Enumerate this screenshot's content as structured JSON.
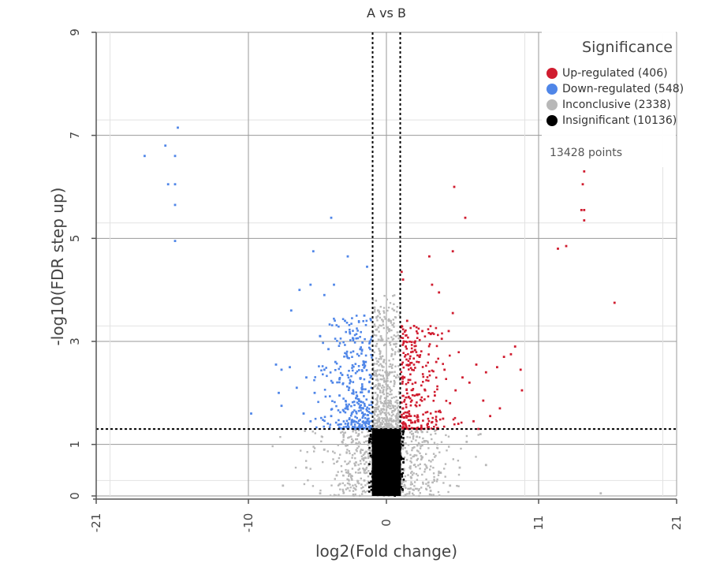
{
  "chart_data": {
    "type": "scatter",
    "title": "A vs B",
    "xlabel": "log2(Fold change)",
    "ylabel": "-log10(FDR step up)",
    "xlim": [
      -21,
      21
    ],
    "ylim": [
      0,
      9
    ],
    "x_ticks": [
      -21,
      -10,
      0,
      11,
      21
    ],
    "y_ticks": [
      0,
      1,
      3,
      5,
      7,
      9
    ],
    "x_tick_labels": [
      "-21",
      "-10",
      "0",
      "11",
      "21"
    ],
    "y_tick_labels": [
      "0",
      "1",
      "3",
      "5",
      "7",
      "9"
    ],
    "grid": true,
    "thresholds": {
      "log2_fold_change": [
        -1,
        1
      ],
      "neg_log10_fdr": 1.3
    },
    "legend": {
      "title": "Significance",
      "position": "top-right",
      "items": [
        {
          "label": "Up-regulated (406)",
          "color": "#d01c2f"
        },
        {
          "label": "Down-regulated (548)",
          "color": "#4f86e8"
        },
        {
          "label": "Inconclusive (2338)",
          "color": "#b8b8b8"
        },
        {
          "label": "Insignificant (10136)",
          "color": "#000000"
        }
      ],
      "point_count": "13428 points"
    },
    "series": [
      {
        "name": "Up-regulated (406)",
        "color": "#d01c2f",
        "points": [
          [
            14.3,
            6.3
          ],
          [
            14.2,
            6.05
          ],
          [
            14.1,
            5.55
          ],
          [
            14.3,
            5.55
          ],
          [
            14.3,
            5.35
          ],
          [
            13.0,
            4.85
          ],
          [
            12.4,
            4.8
          ],
          [
            16.5,
            3.75
          ],
          [
            4.9,
            6.0
          ],
          [
            5.7,
            5.4
          ],
          [
            4.8,
            4.75
          ],
          [
            3.1,
            4.65
          ],
          [
            1.1,
            4.35
          ],
          [
            1.2,
            4.2
          ],
          [
            3.3,
            4.1
          ],
          [
            3.8,
            3.95
          ],
          [
            4.8,
            3.55
          ],
          [
            9.3,
            2.9
          ],
          [
            9.0,
            2.75
          ],
          [
            8.5,
            2.7
          ],
          [
            8.0,
            2.5
          ],
          [
            9.7,
            2.45
          ],
          [
            9.8,
            2.05
          ],
          [
            7.2,
            2.4
          ],
          [
            6.5,
            2.55
          ],
          [
            6.0,
            2.2
          ],
          [
            5.5,
            2.3
          ],
          [
            5.0,
            2.05
          ],
          [
            8.2,
            1.7
          ],
          [
            7.0,
            1.85
          ],
          [
            6.3,
            1.45
          ],
          [
            7.5,
            1.55
          ],
          [
            1.5,
            3.4
          ],
          [
            2.0,
            3.3
          ],
          [
            2.6,
            3.2
          ],
          [
            3.2,
            3.15
          ],
          [
            4.0,
            3.05
          ],
          [
            4.5,
            3.2
          ],
          [
            1.4,
            2.9
          ],
          [
            1.9,
            2.8
          ],
          [
            2.4,
            2.7
          ],
          [
            3.6,
            2.6
          ],
          [
            4.2,
            2.45
          ],
          [
            1.3,
            2.3
          ],
          [
            2.1,
            2.2
          ],
          [
            2.8,
            2.05
          ],
          [
            3.5,
            1.95
          ],
          [
            4.6,
            1.8
          ],
          [
            1.2,
            1.7
          ],
          [
            1.7,
            1.55
          ],
          [
            2.3,
            1.45
          ],
          [
            3.0,
            1.4
          ],
          [
            5.2,
            1.4
          ],
          [
            4.1,
            1.5
          ]
        ]
      },
      {
        "name": "Down-regulated (548)",
        "color": "#4f86e8",
        "points": [
          [
            -15.1,
            7.15
          ],
          [
            -16.0,
            6.8
          ],
          [
            -17.5,
            6.6
          ],
          [
            -15.3,
            6.6
          ],
          [
            -15.8,
            6.05
          ],
          [
            -15.3,
            6.05
          ],
          [
            -15.3,
            5.65
          ],
          [
            -15.3,
            4.95
          ],
          [
            -4.0,
            5.4
          ],
          [
            -5.3,
            4.75
          ],
          [
            -2.8,
            4.65
          ],
          [
            -1.4,
            4.45
          ],
          [
            -5.5,
            4.1
          ],
          [
            -3.8,
            4.1
          ],
          [
            -6.3,
            4.0
          ],
          [
            -4.5,
            3.9
          ],
          [
            -6.9,
            3.6
          ],
          [
            -7.0,
            2.5
          ],
          [
            -8.0,
            2.55
          ],
          [
            -7.6,
            2.45
          ],
          [
            -7.8,
            2.0
          ],
          [
            -7.6,
            1.75
          ],
          [
            -9.8,
            1.6
          ],
          [
            -6.5,
            2.1
          ],
          [
            -5.8,
            2.3
          ],
          [
            -5.2,
            2.0
          ],
          [
            -6.0,
            1.6
          ],
          [
            -5.5,
            1.45
          ],
          [
            -4.8,
            3.1
          ],
          [
            -4.2,
            2.85
          ],
          [
            -3.7,
            2.6
          ],
          [
            -3.2,
            2.35
          ],
          [
            -2.7,
            2.1
          ],
          [
            -2.2,
            1.9
          ],
          [
            -1.7,
            1.7
          ],
          [
            -1.3,
            1.5
          ],
          [
            -4.5,
            2.45
          ],
          [
            -3.9,
            2.2
          ],
          [
            -3.4,
            1.95
          ],
          [
            -2.9,
            1.7
          ],
          [
            -2.4,
            3.05
          ],
          [
            -1.9,
            2.85
          ],
          [
            -1.5,
            2.6
          ],
          [
            -1.2,
            2.35
          ],
          [
            -3.0,
            3.4
          ],
          [
            -2.5,
            1.45
          ],
          [
            -4.0,
            1.55
          ],
          [
            -1.6,
            3.5
          ]
        ]
      },
      {
        "name": "Inconclusive (2338)",
        "color": "#b8b8b8",
        "points": [
          [
            -7.5,
            0.2
          ],
          [
            -5.8,
            0.55
          ],
          [
            -4.8,
            0.05
          ],
          [
            -4.5,
            0.9
          ],
          [
            -3.6,
            0.4
          ],
          [
            -2.8,
            0.15
          ],
          [
            -2.2,
            0.65
          ],
          [
            -1.6,
            0.3
          ],
          [
            -3.2,
            1.05
          ],
          [
            -2.0,
            1.2
          ],
          [
            3.2,
            0.1
          ],
          [
            3.8,
            0.45
          ],
          [
            4.6,
            0.2
          ],
          [
            5.3,
            0.55
          ],
          [
            2.6,
            0.75
          ],
          [
            1.8,
            0.35
          ],
          [
            6.8,
            1.2
          ],
          [
            5.8,
            1.05
          ],
          [
            7.2,
            0.6
          ],
          [
            2.2,
            1.15
          ],
          [
            15.5,
            0.05
          ],
          [
            -0.6,
            3.6
          ],
          [
            -0.4,
            3.1
          ],
          [
            -0.2,
            2.6
          ],
          [
            0.2,
            3.2
          ],
          [
            0.4,
            2.75
          ],
          [
            0.7,
            2.3
          ],
          [
            -0.8,
            2.0
          ],
          [
            0.8,
            1.8
          ],
          [
            -0.5,
            1.5
          ],
          [
            0.5,
            1.45
          ]
        ]
      },
      {
        "name": "Insignificant (10136)",
        "color": "#000000",
        "points": [
          [
            -0.8,
            0.2
          ],
          [
            -0.4,
            0.6
          ],
          [
            0.1,
            1.1
          ],
          [
            0.6,
            0.4
          ],
          [
            0.9,
            0.9
          ]
        ]
      }
    ]
  }
}
